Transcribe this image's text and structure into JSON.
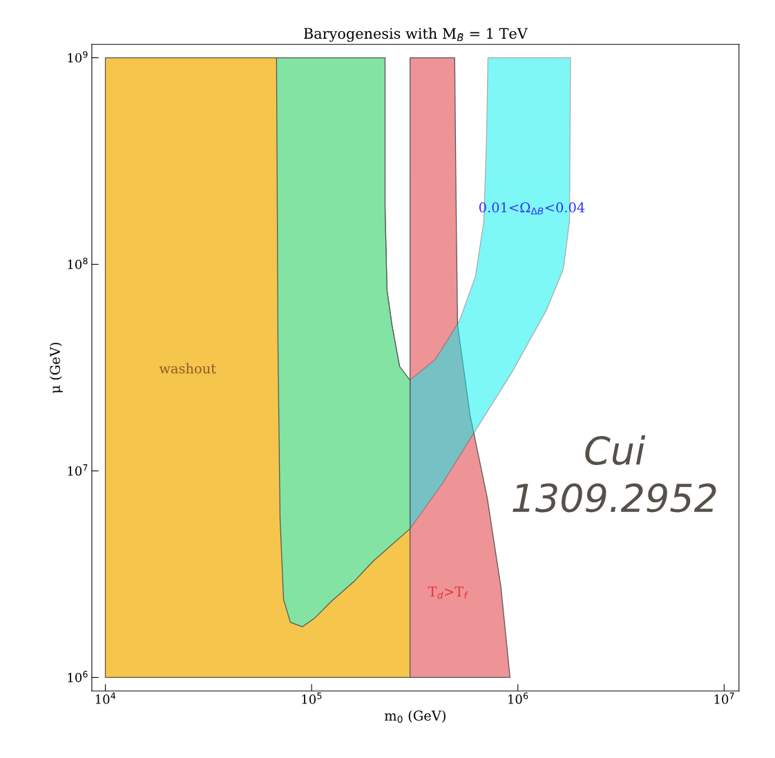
{
  "chart_data": {
    "type": "area",
    "title": "Baryogenesis with M$_{B̃}$ = 1 TeV",
    "xlabel": "m$_{0}$ (GeV)",
    "ylabel": "μ (GeV)",
    "log": "xy",
    "grid": false,
    "legend": false,
    "xlim": [
      8600,
      11800000
    ],
    "ylim": [
      860000,
      1160000000
    ],
    "xticks": [
      {
        "value": 10000,
        "label": "10$^{4}$"
      },
      {
        "value": 100000,
        "label": "10$^{5}$"
      },
      {
        "value": 1000000,
        "label": "10$^{6}$"
      },
      {
        "value": 10000000,
        "label": "10$^{7}$"
      }
    ],
    "yticks": [
      {
        "value": 1000000,
        "label": "10$^{6}$"
      },
      {
        "value": 10000000,
        "label": "10$^{7}$"
      },
      {
        "value": 100000000,
        "label": "10$^{8}$"
      },
      {
        "value": 1000000000,
        "label": "10$^{9}$"
      }
    ],
    "series": [
      {
        "color": "#f5c54c",
        "x": [
          10000,
          227000,
          227000,
          232000,
          245000,
          267000,
          293000,
          300000,
          300000,
          10000
        ],
        "values": [
          1000000000,
          1000000000,
          189000000,
          75000000,
          51000000,
          32000000,
          27500000,
          27500000,
          1000000,
          1000000
        ]
      },
      {
        "color": "#ee9396",
        "x": [
          300000,
          494000,
          502000,
          510000,
          586000,
          710000,
          828000,
          916000,
          300000
        ],
        "values": [
          1000000000,
          1000000000,
          189000000,
          51000000,
          18700000,
          7430000,
          2730000,
          1000000,
          1000000
        ]
      },
      {
        "color": "#00f0f0",
        "x": [
          716000,
          1800000,
          1780000,
          1660000,
          1370000,
          930000,
          633000,
          430000,
          300000,
          300000,
          398000,
          520000,
          623000,
          684000,
          705000
        ],
        "values": [
          1000000000,
          1000000000,
          162000000,
          94500000,
          59500000,
          29700000,
          16100000,
          8670000,
          5250000,
          27500000,
          34700000,
          53000000,
          87500000,
          162000000,
          409000000
        ]
      },
      {
        "color": "#82e3a3",
        "x": [
          67600,
          227000,
          227000,
          232000,
          245000,
          267000,
          300000,
          300000,
          199000,
          162000,
          125000,
          103000,
          90300,
          78900,
          73100,
          70300,
          68700
        ],
        "values": [
          1000000000,
          1000000000,
          189000000,
          75000000,
          51000000,
          32000000,
          27500000,
          5250000,
          3660000,
          2940000,
          2340000,
          1930000,
          1760000,
          1850000,
          2390000,
          5900000,
          40500000
        ]
      }
    ],
    "annotations": [
      "washout",
      "T$_{d}$>T$_{f}$",
      "0.01<Ω$_{ΔB}$<0.04",
      "Cui\n1309.2952"
    ]
  }
}
